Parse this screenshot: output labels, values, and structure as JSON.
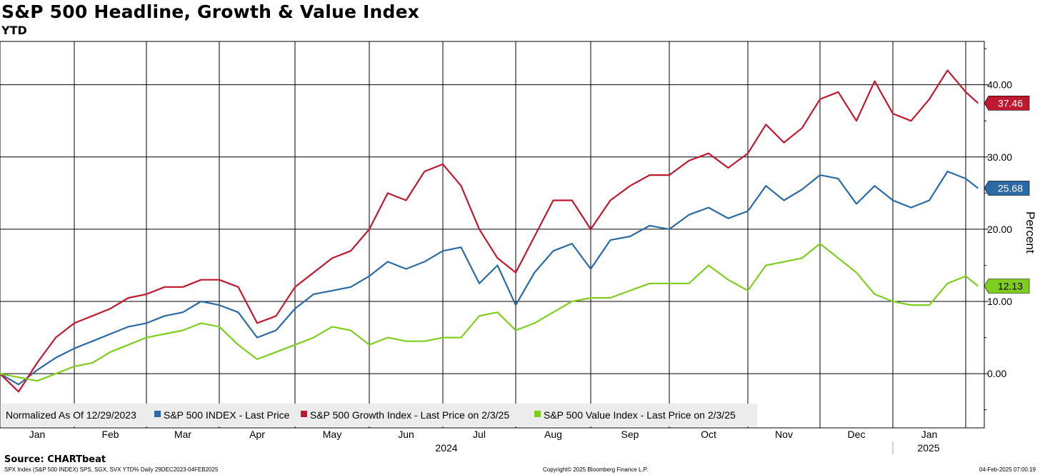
{
  "title": "S&P 500 Headline, Growth & Value Index",
  "subtitle": "YTD",
  "source": "Source: CHARTbeat",
  "footer": {
    "left": "SPX Index (S&P 500 INDEX) SPS, SGX, SVX YTD% Daily 29DEC2023-04FEB2025",
    "center": "Copyright© 2025 Bloomberg Finance L.P.",
    "right": "04-Feb-2025 07:00:19"
  },
  "chart_data": {
    "type": "line",
    "ylabel": "Percent",
    "ylim": [
      -7.5,
      46
    ],
    "yticks": [
      0,
      10,
      20,
      30,
      40
    ],
    "ytick_labels": [
      "0.00",
      "10.00",
      "20.00",
      "30.00",
      "40.00"
    ],
    "grid": true,
    "legend_placement": "bottom-left",
    "legend_prefix": "Normalized As Of 12/29/2023",
    "months": [
      "Jan",
      "Feb",
      "Mar",
      "Apr",
      "May",
      "Jun",
      "Jul",
      "Aug",
      "Sep",
      "Oct",
      "Nov",
      "Dec",
      "Jan"
    ],
    "years": [
      "2024",
      "2025"
    ],
    "x_points": [
      0,
      0.25,
      0.5,
      0.75,
      1,
      1.25,
      1.5,
      1.75,
      2,
      2.25,
      2.5,
      2.75,
      3,
      3.25,
      3.5,
      3.75,
      4,
      4.25,
      4.5,
      4.75,
      5,
      5.25,
      5.5,
      5.75,
      6,
      6.25,
      6.5,
      6.75,
      7,
      7.25,
      7.5,
      7.75,
      8,
      8.25,
      8.5,
      8.75,
      9,
      9.25,
      9.5,
      9.75,
      10,
      10.25,
      10.5,
      10.75,
      11,
      11.25,
      11.5,
      11.75,
      12,
      12.25,
      12.5,
      12.75,
      13,
      13.17
    ],
    "series": [
      {
        "name": "S&P 500 INDEX - Last Price",
        "color": "#2b6aa4",
        "last_label": "25.68",
        "values": [
          0,
          -1.5,
          0.5,
          2.2,
          3.5,
          4.5,
          5.5,
          6.5,
          7,
          8,
          8.5,
          10,
          9.5,
          8.5,
          5,
          6,
          9,
          11,
          11.5,
          12,
          13.5,
          15.5,
          14.5,
          15.5,
          17,
          17.5,
          12.5,
          15,
          9.5,
          14,
          17,
          18,
          14.5,
          18.5,
          19,
          20.5,
          20,
          22,
          23,
          21.5,
          22.5,
          26,
          24,
          25.5,
          27.5,
          27,
          23.5,
          26,
          24,
          23,
          24,
          28,
          27,
          25.68
        ]
      },
      {
        "name": "S&P 500 Growth Index - Last Price on 2/3/25",
        "color": "#c0182f",
        "last_label": "37.46",
        "values": [
          0,
          -2.5,
          1.5,
          5,
          7,
          8,
          9,
          10.5,
          11,
          12,
          12,
          13,
          13,
          12,
          7,
          8,
          12,
          14,
          16,
          17,
          20,
          25,
          24,
          28,
          29,
          26,
          20,
          16,
          14,
          19,
          24,
          24,
          20,
          24,
          26,
          27.5,
          27.5,
          29.5,
          30.5,
          28.5,
          30.5,
          34.5,
          32,
          34,
          38,
          39,
          35,
          40.5,
          36,
          35,
          38,
          42,
          39,
          37.46
        ]
      },
      {
        "name": "S&P 500 Value Index - Last Price on 2/3/25",
        "color": "#7fcd1f",
        "last_label": "12.13",
        "values": [
          0,
          -0.5,
          -1,
          0,
          1,
          1.5,
          3,
          4,
          5,
          5.5,
          6,
          7,
          6.5,
          4,
          2,
          3,
          4,
          5,
          6.5,
          6,
          4,
          5,
          4.5,
          4.5,
          5,
          5,
          8,
          8.5,
          6,
          7,
          8.5,
          10,
          10.5,
          10.5,
          11.5,
          12.5,
          12.5,
          12.5,
          15,
          13,
          11.5,
          15,
          15.5,
          16,
          18,
          16,
          14,
          11,
          10,
          9.5,
          9.5,
          12.5,
          13.5,
          12.13
        ]
      }
    ]
  }
}
